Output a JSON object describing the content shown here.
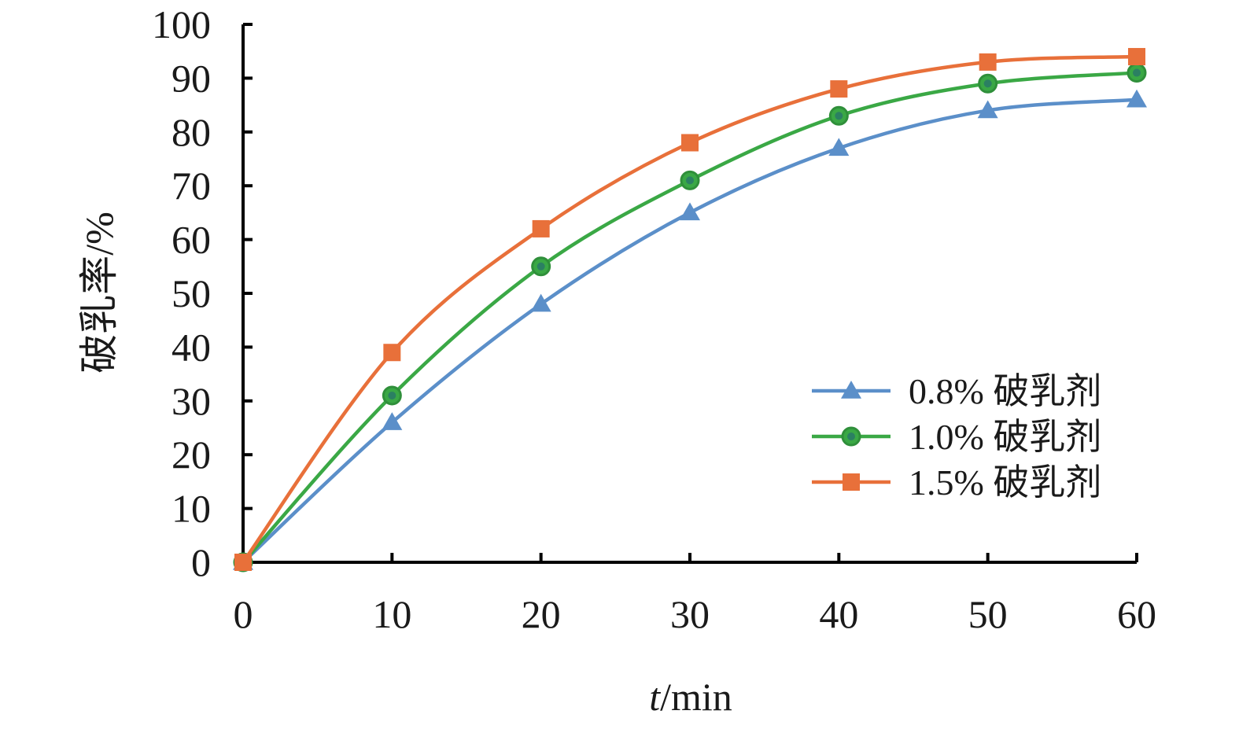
{
  "chart_data": {
    "type": "line",
    "xlabel_italic": "t",
    "xlabel_rest": "/min",
    "ylabel": "破乳率/%",
    "x": [
      0,
      10,
      20,
      30,
      40,
      50,
      60
    ],
    "xlim": [
      0,
      60
    ],
    "ylim": [
      0,
      100
    ],
    "xticks": [
      0,
      10,
      20,
      30,
      40,
      50,
      60
    ],
    "yticks": [
      0,
      10,
      20,
      30,
      40,
      50,
      60,
      70,
      80,
      90,
      100
    ],
    "grid": false,
    "legend_position": "right",
    "series": [
      {
        "name": "0.8% 破乳剂",
        "marker": "triangle",
        "color": "#5b8fc9",
        "values": [
          0,
          26,
          48,
          65,
          77,
          84,
          86
        ]
      },
      {
        "name": "1.0% 破乳剂",
        "marker": "circle",
        "color": "#3aa845",
        "values": [
          0,
          31,
          55,
          71,
          83,
          89,
          91
        ]
      },
      {
        "name": "1.5% 破乳剂",
        "marker": "square",
        "color": "#e8703a",
        "values": [
          0,
          39,
          62,
          78,
          88,
          93,
          94
        ]
      }
    ]
  }
}
